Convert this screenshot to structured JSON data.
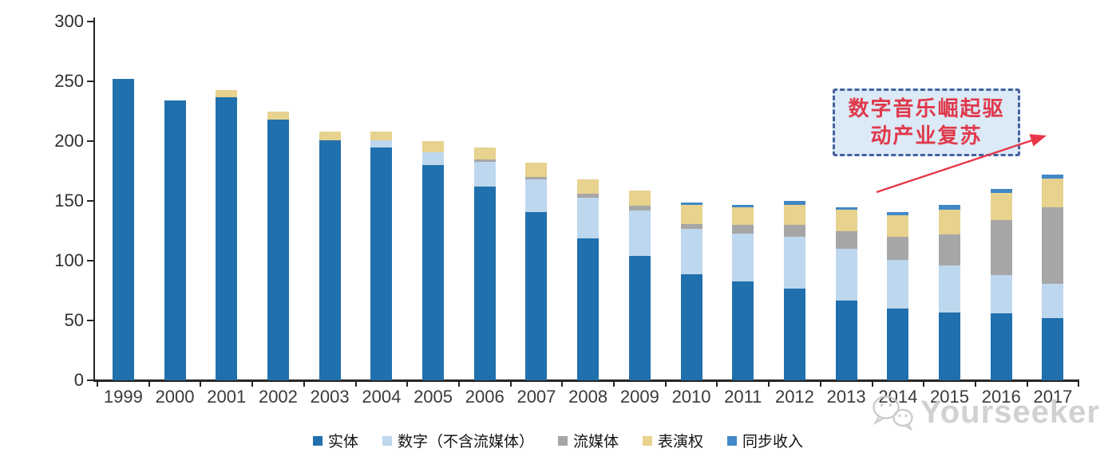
{
  "chart_data": {
    "type": "bar",
    "stacked": true,
    "title": "",
    "xlabel": "",
    "ylabel": "",
    "grid": false,
    "legend_position": "bottom",
    "ylim": [
      0,
      300
    ],
    "y_ticks": [
      0,
      50,
      100,
      150,
      200,
      250,
      300
    ],
    "categories": [
      "1999",
      "2000",
      "2001",
      "2002",
      "2003",
      "2004",
      "2005",
      "2006",
      "2007",
      "2008",
      "2009",
      "2010",
      "2011",
      "2012",
      "2013",
      "2014",
      "2015",
      "2016",
      "2017"
    ],
    "series": [
      {
        "name": "实体",
        "color": "#2070AD",
        "values": [
          252,
          234,
          237,
          218,
          201,
          195,
          180,
          162,
          141,
          119,
          104,
          89,
          83,
          77,
          67,
          60,
          57,
          56,
          52
        ]
      },
      {
        "name": "数字（不含流媒体）",
        "color": "#BDD7EE",
        "values": [
          0,
          0,
          0,
          0,
          0,
          6,
          11,
          21,
          27,
          34,
          38,
          38,
          40,
          43,
          43,
          41,
          39,
          32,
          29
        ]
      },
      {
        "name": "流媒体",
        "color": "#A6A6A6",
        "values": [
          0,
          0,
          0,
          0,
          0,
          0,
          0,
          2,
          2,
          3,
          4,
          4,
          7,
          10,
          15,
          19,
          26,
          46,
          64
        ]
      },
      {
        "name": "表演权",
        "color": "#E7D28E",
        "values": [
          0,
          0,
          6,
          7,
          7,
          7,
          9,
          10,
          12,
          12,
          13,
          16,
          15,
          17,
          18,
          18,
          21,
          23,
          24
        ]
      },
      {
        "name": "同步收入",
        "color": "#4288C7",
        "values": [
          0,
          0,
          0,
          0,
          0,
          0,
          0,
          0,
          0,
          0,
          0,
          2,
          2,
          3,
          2,
          3,
          4,
          3,
          3
        ]
      }
    ],
    "totals": [
      252,
      234,
      243,
      225,
      208,
      208,
      200,
      195,
      182,
      168,
      159,
      149,
      147,
      150,
      145,
      141,
      147,
      160,
      172
    ]
  },
  "annotation": {
    "line1": "数字音乐崛起驱",
    "line2": "动产业复苏",
    "text_color": "#E0394B",
    "border_color": "#44639E",
    "fill_color": "#DCE9F6",
    "arrow_color": "#E8374A"
  },
  "watermark": {
    "brand": "Yourseeker",
    "icon": "wechat-icon",
    "color": "#cbcbcb"
  }
}
